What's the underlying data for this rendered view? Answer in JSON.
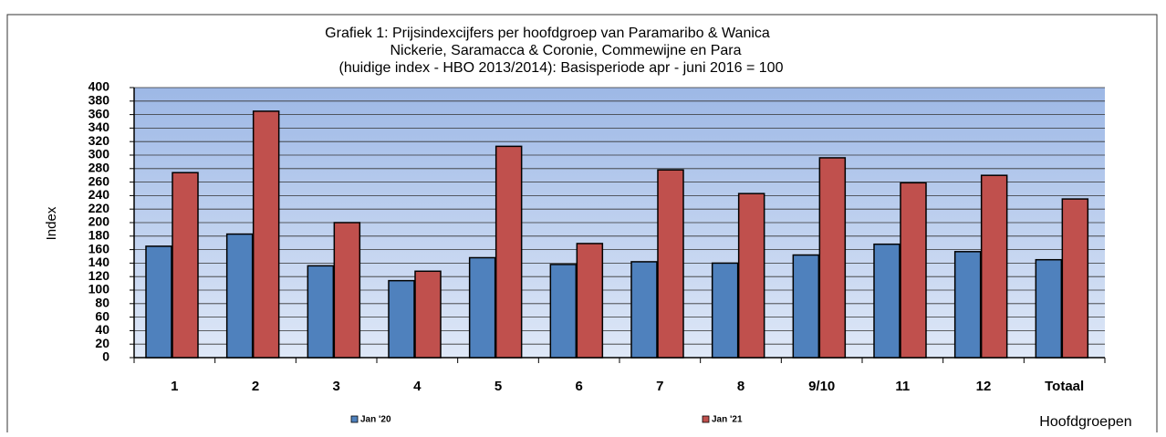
{
  "chart_data": {
    "type": "bar",
    "title": [
      "Grafiek 1: Prijsindexcijfers per hoofdgroep van Paramaribo & Wanica",
      "Nickerie, Saramacca & Coronie, Commewijne en Para",
      "(huidige index - HBO 2013/2014): Basisperiode apr - juni 2016 = 100"
    ],
    "y_label": "Index",
    "x_label": "Hoofdgroepen",
    "categories": [
      "1",
      "2",
      "3",
      "4",
      "5",
      "6",
      "7",
      "8",
      "9/10",
      "11",
      "12",
      "Totaal"
    ],
    "series": [
      {
        "name": "Jan '20",
        "color": "#4f81bd",
        "values": [
          165,
          183,
          136,
          114,
          148,
          138,
          142,
          140,
          152,
          168,
          157,
          145
        ]
      },
      {
        "name": "Jan '21",
        "color": "#c0504d",
        "values": [
          274,
          365,
          200,
          128,
          313,
          169,
          278,
          243,
          296,
          259,
          270,
          235
        ]
      }
    ],
    "ylim": [
      0,
      400
    ],
    "yticks": [
      0,
      20,
      40,
      60,
      80,
      100,
      120,
      140,
      160,
      180,
      200,
      220,
      240,
      260,
      280,
      300,
      320,
      340,
      360,
      380,
      400
    ],
    "grid": true
  }
}
